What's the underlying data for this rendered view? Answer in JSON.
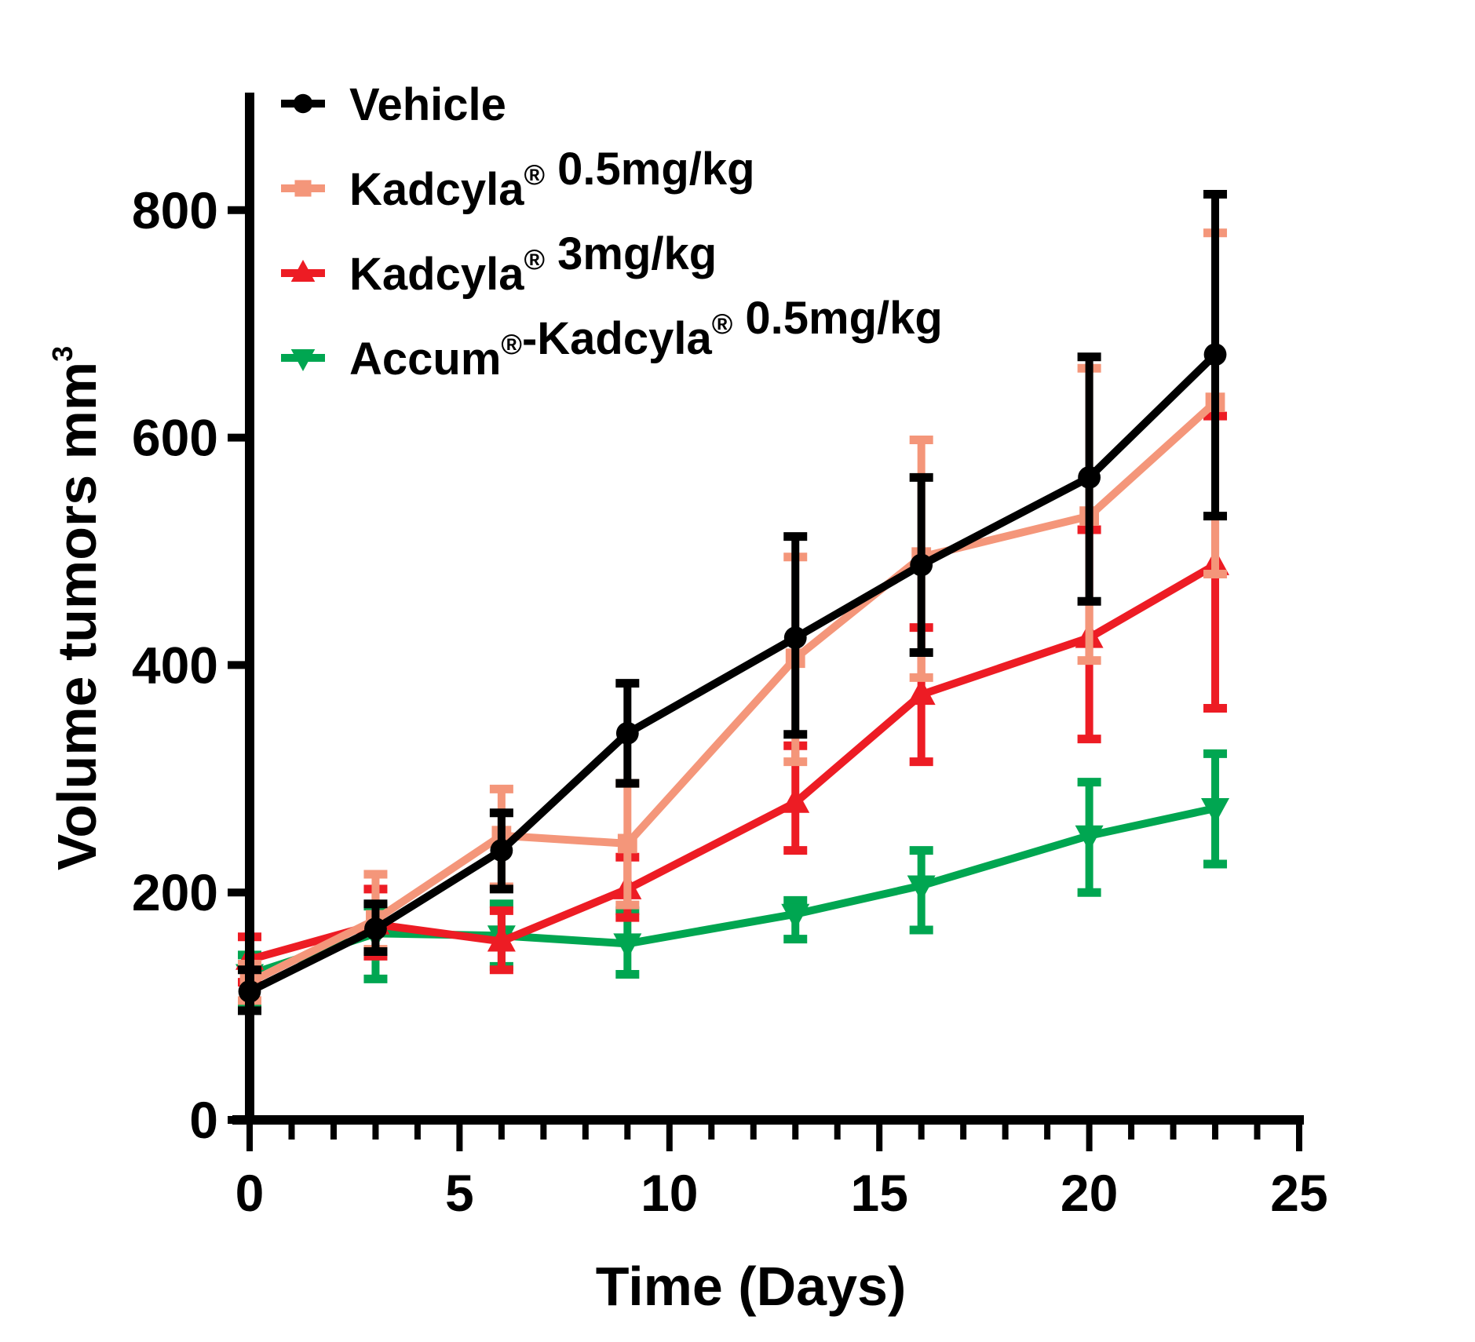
{
  "chart_data": {
    "type": "line",
    "title": "",
    "xlabel": "Time (Days)",
    "ylabel": "Volume tumors mm",
    "ylabel_superscript": "3",
    "xlim": [
      0,
      25
    ],
    "ylim": [
      0,
      900
    ],
    "x_ticks": [
      0,
      5,
      10,
      15,
      20,
      25
    ],
    "x_tick_labels": [
      "0",
      "5",
      "10",
      "15",
      "20",
      "25"
    ],
    "x_minor_tick_step": 1,
    "y_ticks": [
      0,
      200,
      400,
      600,
      800
    ],
    "y_tick_labels": [
      "0",
      "200",
      "400",
      "600",
      "800"
    ],
    "grid": false,
    "legend_position": "top-left",
    "error_bars": true,
    "x": [
      0,
      3,
      6,
      9,
      13,
      16,
      20,
      23
    ],
    "series": [
      {
        "name": "Vehicle",
        "legend_parts": [
          {
            "text": "Vehicle"
          }
        ],
        "color": "#000000",
        "marker": "circle",
        "values": [
          113,
          168,
          237,
          340,
          424,
          488,
          565,
          673
        ],
        "err_low": [
          96,
          148,
          203,
          296,
          339,
          411,
          456,
          531
        ],
        "err_high": [
          132,
          190,
          270,
          384,
          513,
          565,
          671,
          814
        ]
      },
      {
        "name": "Kadcyla® 0.5mg/kg",
        "legend_parts": [
          {
            "text": "Kadcyla"
          },
          {
            "sup": "®"
          },
          {
            "text": " 0.5mg/kg"
          }
        ],
        "color": "#F4967A",
        "marker": "square",
        "values": [
          121,
          176,
          250,
          243,
          406,
          495,
          531,
          631
        ],
        "err_low": [
          105,
          150,
          205,
          189,
          315,
          389,
          404,
          480
        ],
        "err_high": [
          137,
          216,
          291,
          296,
          495,
          598,
          661,
          780
        ]
      },
      {
        "name": "Kadcyla® 3mg/kg",
        "legend_parts": [
          {
            "text": "Kadcyla"
          },
          {
            "sup": "®"
          },
          {
            "text": " 3mg/kg"
          }
        ],
        "color": "#ED1C24",
        "marker": "triangle-up",
        "values": [
          141,
          172,
          157,
          203,
          279,
          374,
          424,
          488
        ],
        "err_low": [
          121,
          144,
          132,
          178,
          237,
          315,
          335,
          362
        ],
        "err_high": [
          161,
          203,
          184,
          231,
          329,
          433,
          519,
          619
        ]
      },
      {
        "name": "Accum®-Kadcyla® 0.5mg/kg",
        "legend_parts": [
          {
            "text": "Accum"
          },
          {
            "sup": "®"
          },
          {
            "text": "-Kadcyla"
          },
          {
            "sup": "®"
          },
          {
            "text": " 0.5mg/kg"
          }
        ],
        "color": "#00A651",
        "marker": "triangle-down",
        "values": [
          128,
          164,
          162,
          155,
          181,
          206,
          250,
          274
        ],
        "err_low": [
          101,
          124,
          135,
          128,
          159,
          167,
          200,
          225
        ],
        "err_high": [
          145,
          188,
          190,
          184,
          193,
          237,
          297,
          322
        ]
      }
    ]
  }
}
